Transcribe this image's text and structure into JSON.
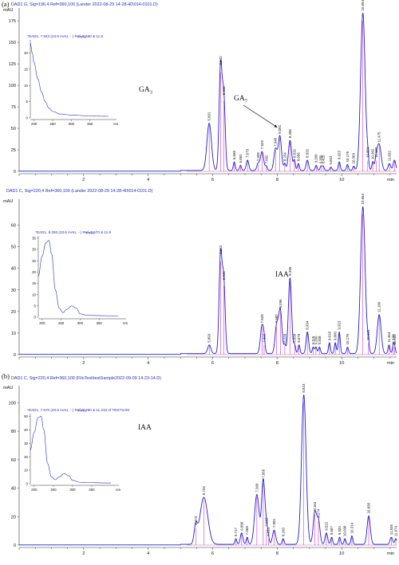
{
  "chart_data": [
    {
      "type": "line",
      "panel_tag": "(a)",
      "header": "DAD1 G, Sig=196,4 Ref=360,100 (Lander 2022-08-29 14-28-40\\014-0101.D)",
      "ylabel": "mAU",
      "xlabel": "min",
      "xlim": [
        0,
        11.7
      ],
      "ylim": [
        0,
        190
      ],
      "xticks": [
        2,
        4,
        6,
        8,
        10
      ],
      "yticks": [
        0,
        25,
        50,
        75,
        100,
        125,
        150,
        175
      ],
      "series": [
        {
          "baseline": 1,
          "peaks": [
            {
              "rt": 5.891,
              "h": 55,
              "w": 0.07
            },
            {
              "rt": 6.242,
              "h": 120,
              "w": 0.045
            },
            {
              "rt": 6.342,
              "h": 85,
              "w": 0.045
            },
            {
              "rt": 6.668,
              "h": 10,
              "w": 0.03
            },
            {
              "rt": 6.862,
              "h": 6,
              "w": 0.03
            },
            {
              "rt": 7.079,
              "h": 12,
              "w": 0.04
            },
            {
              "rt": 7.408,
              "h": 8,
              "w": 0.04
            },
            {
              "rt": 7.529,
              "h": 22,
              "w": 0.05
            },
            {
              "rt": 7.662,
              "h": 5,
              "w": 0.03
            },
            {
              "rt": 7.946,
              "h": 25,
              "w": 0.05
            },
            {
              "rt": 8.081,
              "h": 40,
              "w": 0.05
            },
            {
              "rt": 8.234,
              "h": 8,
              "w": 0.03
            },
            {
              "rt": 8.396,
              "h": 35,
              "w": 0.05
            },
            {
              "rt": 8.532,
              "h": 12,
              "w": 0.03
            },
            {
              "rt": 8.656,
              "h": 8,
              "w": 0.03
            },
            {
              "rt": 8.932,
              "h": 12,
              "w": 0.04
            },
            {
              "rt": 9.206,
              "h": 6,
              "w": 0.03
            },
            {
              "rt": 9.356,
              "h": 5,
              "w": 0.03
            },
            {
              "rt": 9.425,
              "h": 5,
              "w": 0.03
            },
            {
              "rt": 9.663,
              "h": 4,
              "w": 0.03
            },
            {
              "rt": 9.923,
              "h": 10,
              "w": 0.03
            },
            {
              "rt": 10.176,
              "h": 7,
              "w": 0.03
            },
            {
              "rt": 10.369,
              "h": 5,
              "w": 0.03
            },
            {
              "rt": 10.654,
              "h": 183,
              "w": 0.07
            },
            {
              "rt": 10.804,
              "h": 12,
              "w": 0.03
            },
            {
              "rt": 10.962,
              "h": 10,
              "w": 0.03
            },
            {
              "rt": 11.07,
              "h": 12,
              "w": 0.04
            },
            {
              "rt": 11.16,
              "h": 30,
              "w": 0.06
            },
            {
              "rt": 11.476,
              "h": 8,
              "w": 0.04
            },
            {
              "rt": 11.632,
              "h": 12,
              "w": 0.04
            }
          ]
        }
      ],
      "peak_labels": [
        "5.891",
        "6.242",
        "6.342",
        "6.668",
        "6.862",
        "7.079",
        "7.408",
        "7.529",
        "7.662",
        "7.946",
        "8.081",
        "8.234",
        "8.396",
        "8.532",
        "8.656",
        "8.932",
        "9.206",
        "9.356",
        "9.425",
        "9.663",
        "9.923",
        "10.176",
        "10.369",
        "10.654",
        "10.804",
        "10.962",
        "11.160",
        "11.476",
        "11.632"
      ],
      "annotations": [
        {
          "text": "GA",
          "sub": "3",
          "near_rt": 8.3
        },
        {
          "text": "GA",
          "sub": "7",
          "near_rt": 7.6,
          "arrow_to_rt": 8.0
        }
      ],
      "inset": {
        "header": "*DAD1, 7.943 (23.9 mAU, - ) Ref=6.660 & 11.9",
        "ylabel": "mAU",
        "xlabel": "nm",
        "xlim": [
          190,
          400
        ],
        "ylim": [
          0,
          24
        ],
        "xticks": [
          200,
          250,
          300,
          350
        ],
        "yticks": [
          0,
          5,
          10,
          15,
          20
        ],
        "spectrum": [
          [
            190,
            23
          ],
          [
            195,
            20
          ],
          [
            200,
            17
          ],
          [
            210,
            12
          ],
          [
            220,
            8
          ],
          [
            230,
            5
          ],
          [
            240,
            3
          ],
          [
            250,
            2
          ],
          [
            270,
            1.2
          ],
          [
            300,
            0.9
          ],
          [
            350,
            0.6
          ],
          [
            400,
            0.5
          ]
        ]
      }
    },
    {
      "type": "line",
      "panel_tag": "",
      "header": "DAD1 C, Sig=220,4 Ref=360,100 (Lander 2022-08-29 14-28-40\\014-0101.D)",
      "ylabel": "mAU",
      "xlabel": "min",
      "xlim": [
        0,
        11.7
      ],
      "ylim": [
        0,
        72
      ],
      "xticks": [
        2,
        4,
        6,
        8,
        10
      ],
      "yticks": [
        0,
        10,
        20,
        30,
        40,
        50,
        60
      ],
      "series": [
        {
          "baseline": 0.5,
          "peaks": [
            {
              "rt": 5.893,
              "h": 4,
              "w": 0.05
            },
            {
              "rt": 6.242,
              "h": 45,
              "w": 0.045
            },
            {
              "rt": 6.341,
              "h": 33,
              "w": 0.045
            },
            {
              "rt": 7.529,
              "h": 13,
              "w": 0.05
            },
            {
              "rt": 7.592,
              "h": 4,
              "w": 0.03
            },
            {
              "rt": 7.982,
              "h": 13,
              "w": 0.05
            },
            {
              "rt": 8.096,
              "h": 20,
              "w": 0.05
            },
            {
              "rt": 8.235,
              "h": 4,
              "w": 0.03
            },
            {
              "rt": 8.395,
              "h": 35,
              "w": 0.05
            },
            {
              "rt": 8.539,
              "h": 4,
              "w": 0.03
            },
            {
              "rt": 8.676,
              "h": 4,
              "w": 0.03
            },
            {
              "rt": 8.934,
              "h": 10,
              "w": 0.04
            },
            {
              "rt": 9.115,
              "h": 3,
              "w": 0.03
            },
            {
              "rt": 9.2,
              "h": 3,
              "w": 0.03
            },
            {
              "rt": 9.308,
              "h": 3,
              "w": 0.03
            },
            {
              "rt": 9.618,
              "h": 5,
              "w": 0.03
            },
            {
              "rt": 9.8,
              "h": 5,
              "w": 0.03
            },
            {
              "rt": 9.923,
              "h": 10,
              "w": 0.03
            },
            {
              "rt": 10.178,
              "h": 3,
              "w": 0.03
            },
            {
              "rt": 10.654,
              "h": 68,
              "w": 0.07
            },
            {
              "rt": 10.822,
              "h": 5,
              "w": 0.03
            },
            {
              "rt": 11.16,
              "h": 18,
              "w": 0.06
            },
            {
              "rt": 11.464,
              "h": 4,
              "w": 0.03
            },
            {
              "rt": 11.598,
              "h": 3,
              "w": 0.03
            },
            {
              "rt": 11.633,
              "h": 3,
              "w": 0.03
            }
          ]
        }
      ],
      "peak_labels": [
        "5.893",
        "6.242",
        "6.341",
        "7.529",
        "7.592",
        "7.982",
        "8.096",
        "8.235",
        "8.395",
        "8.539",
        "8.676",
        "8.934",
        "9.115",
        "9.200",
        "9.308",
        "9.618",
        "9.800",
        "9.923",
        "10.178",
        "10.654",
        "10.822",
        "11.160",
        "11.464",
        "11.598",
        "11.633"
      ],
      "annotations": [
        {
          "text": "IAA",
          "near_rt": 8.4
        }
      ],
      "inset": {
        "header": "*DAD1, 8.393 (33.6 mAU, - ) Ref=6.670 & 11.9",
        "ylabel": "mAU",
        "xlabel": "nm",
        "xlim": [
          190,
          400
        ],
        "ylim": [
          0,
          36
        ],
        "xticks": [
          200,
          250,
          300,
          350
        ],
        "yticks": [
          0,
          5,
          10,
          15,
          20,
          25,
          30,
          35
        ],
        "spectrum": [
          [
            190,
            18
          ],
          [
            200,
            27
          ],
          [
            210,
            33
          ],
          [
            218,
            34
          ],
          [
            225,
            28
          ],
          [
            235,
            12
          ],
          [
            245,
            4
          ],
          [
            255,
            2
          ],
          [
            265,
            3.5
          ],
          [
            278,
            5
          ],
          [
            290,
            4
          ],
          [
            300,
            1.5
          ],
          [
            320,
            0.8
          ],
          [
            400,
            0.5
          ]
        ]
      }
    },
    {
      "type": "line",
      "panel_tag": "(b)",
      "header": "DAD1 C, Sig=220,4 Ref=360,100 (FiloTest\\testSample2022-09-09 14-23-14.D)",
      "ylabel": "mAU",
      "xlabel": "min",
      "xlim": [
        0,
        11.7
      ],
      "ylim": [
        0,
        112
      ],
      "xticks": [
        2,
        4,
        6,
        8,
        10
      ],
      "yticks": [
        0,
        20,
        40,
        60,
        80,
        100
      ],
      "series": [
        {
          "baseline": 0.5,
          "peaks": [
            {
              "rt": 5.473,
              "h": 12,
              "w": 0.05
            },
            {
              "rt": 5.725,
              "h": 33,
              "w": 0.12
            },
            {
              "rt": 6.717,
              "h": 4,
              "w": 0.03
            },
            {
              "rt": 6.896,
              "h": 8,
              "w": 0.04
            },
            {
              "rt": 7.068,
              "h": 5,
              "w": 0.03
            },
            {
              "rt": 7.368,
              "h": 35,
              "w": 0.07
            },
            {
              "rt": 7.566,
              "h": 45,
              "w": 0.05
            },
            {
              "rt": 7.663,
              "h": 11,
              "w": 0.04
            },
            {
              "rt": 7.724,
              "h": 4,
              "w": 0.03
            },
            {
              "rt": 7.903,
              "h": 10,
              "w": 0.05
            },
            {
              "rt": 8.183,
              "h": 4,
              "w": 0.03
            },
            {
              "rt": 8.823,
              "h": 105,
              "w": 0.07
            },
            {
              "rt": 9.163,
              "h": 22,
              "w": 0.05
            },
            {
              "rt": 9.274,
              "h": 17,
              "w": 0.05
            },
            {
              "rt": 9.522,
              "h": 8,
              "w": 0.04
            },
            {
              "rt": 9.687,
              "h": 5,
              "w": 0.03
            },
            {
              "rt": 9.933,
              "h": 5,
              "w": 0.03
            },
            {
              "rt": 10.098,
              "h": 4,
              "w": 0.03
            },
            {
              "rt": 10.314,
              "h": 6,
              "w": 0.03
            },
            {
              "rt": 10.835,
              "h": 20,
              "w": 0.05
            },
            {
              "rt": 11.536,
              "h": 5,
              "w": 0.04
            },
            {
              "rt": 11.674,
              "h": 4,
              "w": 0.03
            }
          ]
        }
      ],
      "peak_labels": [
        "5.473",
        "5.725",
        "6.717",
        "6.896",
        "7.068",
        "7.368",
        "7.566",
        "7.663",
        "7.724",
        "7.903",
        "8.183",
        "8.823",
        "9.163",
        "9.274",
        "9.522",
        "9.687",
        "9.933",
        "10.098",
        "10.314",
        "10.835",
        "11.536",
        "11.674"
      ],
      "annotations": [
        {
          "text": "IAA",
          "near_rt": 7.55
        }
      ],
      "inset": {
        "header": "*DAD1, 7.570 (40.8 mAU, - ) Ref=5.250 & 11.210 of TESTSAM",
        "ylabel": "mAU",
        "xlabel": "nm",
        "xlim": [
          190,
          400
        ],
        "ylim": [
          0,
          52
        ],
        "xticks": [
          200,
          250,
          300,
          350
        ],
        "yticks": [
          0,
          10,
          20,
          30,
          40,
          50
        ],
        "spectrum": [
          [
            190,
            25
          ],
          [
            200,
            38
          ],
          [
            210,
            49
          ],
          [
            218,
            50
          ],
          [
            225,
            40
          ],
          [
            235,
            15
          ],
          [
            245,
            5
          ],
          [
            255,
            3
          ],
          [
            265,
            5
          ],
          [
            278,
            7.5
          ],
          [
            290,
            6
          ],
          [
            300,
            2.5
          ],
          [
            320,
            1
          ],
          [
            400,
            0.5
          ]
        ]
      }
    }
  ]
}
